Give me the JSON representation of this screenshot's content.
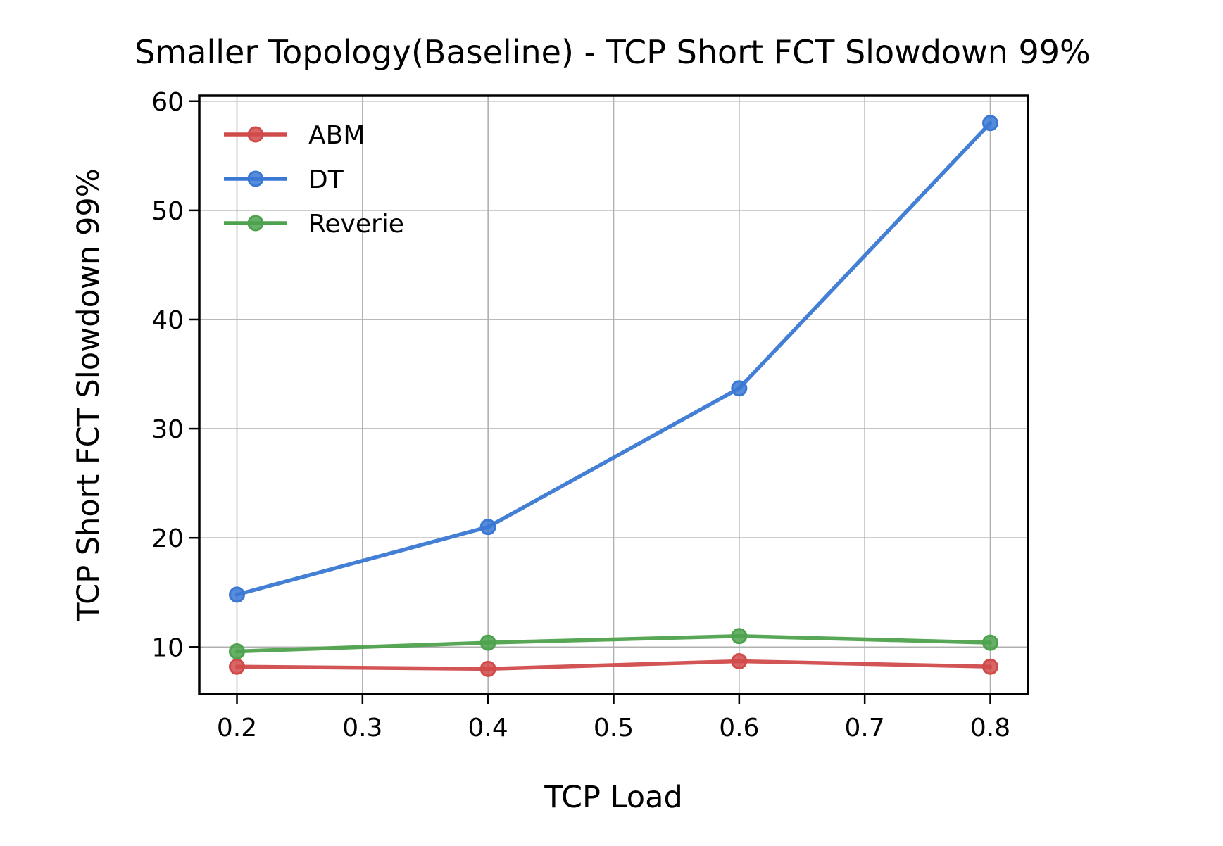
{
  "chart_data": {
    "type": "line",
    "title": "Smaller Topology(Baseline) - TCP Short FCT Slowdown 99%",
    "xlabel": "TCP Load",
    "ylabel": "TCP Short FCT Slowdown 99%",
    "x": [
      0.2,
      0.4,
      0.6,
      0.8
    ],
    "xlim": [
      0.17,
      0.83
    ],
    "ylim": [
      5.7,
      60.5
    ],
    "xticks": [
      "0.2",
      "0.3",
      "0.4",
      "0.5",
      "0.6",
      "0.7",
      "0.8"
    ],
    "yticks": [
      "10",
      "20",
      "30",
      "40",
      "50",
      "60"
    ],
    "grid": true,
    "legend_position": "upper-left",
    "series": [
      {
        "name": "ABM",
        "color": "#d14b4b",
        "values": [
          8.2,
          8.0,
          8.7,
          8.2
        ]
      },
      {
        "name": "DT",
        "color": "#3a78d4",
        "values": [
          14.8,
          21.0,
          33.7,
          58.0
        ]
      },
      {
        "name": "Reverie",
        "color": "#4ea24e",
        "values": [
          9.6,
          10.4,
          11.0,
          10.4
        ]
      }
    ]
  }
}
